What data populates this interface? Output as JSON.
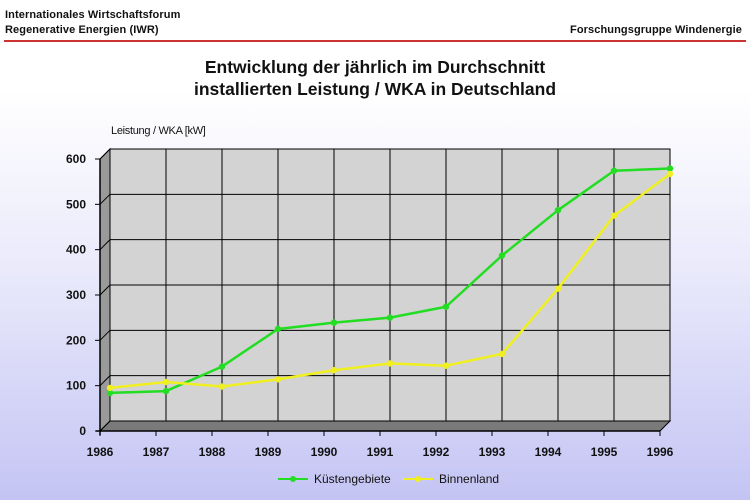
{
  "header": {
    "line1": "Internationales Wirtschaftsforum",
    "line2": "Regenerative Energien (IWR)",
    "right": "Forschungsgruppe Windenergie"
  },
  "chart_data": {
    "type": "line",
    "title_line1": "Entwicklung der jährlich im Durchschnitt",
    "title_line2": "installierten Leistung / WKA in Deutschland",
    "ylabel": "Leistung / WKA [kW]",
    "xlabel": "",
    "x": [
      "1986",
      "1987",
      "1988",
      "1989",
      "1990",
      "1991",
      "1992",
      "1993",
      "1994",
      "1995",
      "1996"
    ],
    "ylim": [
      0,
      600
    ],
    "yticks": [
      0,
      100,
      200,
      300,
      400,
      500,
      600
    ],
    "grid": true,
    "legend_position": "bottom",
    "series": [
      {
        "name": "Küstengebiete",
        "color": "#22dd22",
        "values": [
          62,
          66,
          120,
          203,
          217,
          228,
          252,
          365,
          465,
          552,
          557
        ]
      },
      {
        "name": "Binnenland",
        "color": "#f0f020",
        "values": [
          73,
          86,
          76,
          92,
          112,
          127,
          122,
          148,
          292,
          453,
          545
        ]
      }
    ]
  }
}
